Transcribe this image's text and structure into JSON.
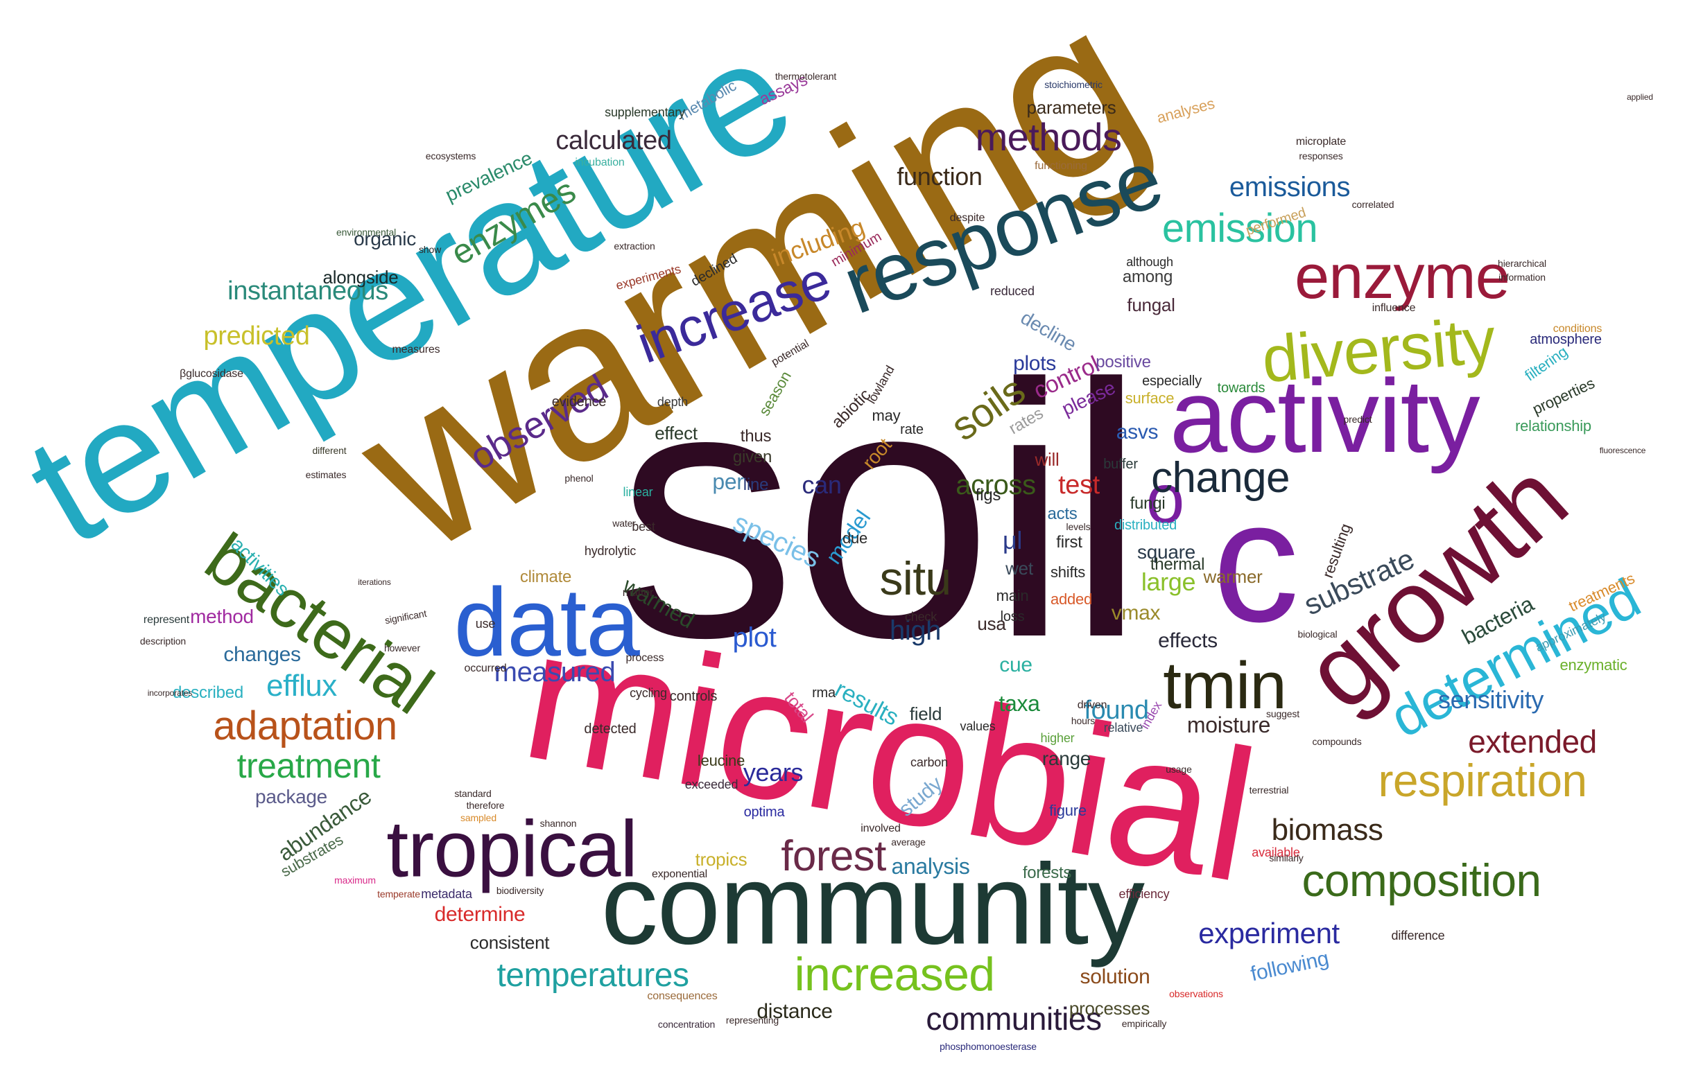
{
  "word_cloud": {
    "words": [
      {
        "text": "soil",
        "color": "#2e0a22"
      },
      {
        "text": "warming",
        "color": "#9a6a14"
      },
      {
        "text": "temperature",
        "color": "#22a9c2"
      },
      {
        "text": "microbial",
        "color": "#e0205f"
      },
      {
        "text": "community",
        "color": "#1d3a34"
      },
      {
        "text": "c",
        "color": "#7a1fa0"
      },
      {
        "text": "activity",
        "color": "#7a1fa0"
      },
      {
        "text": "growth",
        "color": "#6e1034"
      },
      {
        "text": "response",
        "color": "#1a4a5a"
      },
      {
        "text": "data",
        "color": "#2a5fd0"
      },
      {
        "text": "bacterial",
        "color": "#3d6a1a"
      },
      {
        "text": "tropical",
        "color": "#3a1040"
      },
      {
        "text": "diversity",
        "color": "#a3b81c"
      },
      {
        "text": "enzyme",
        "color": "#9a1a3a"
      },
      {
        "text": "increase",
        "color": "#3b2a9a"
      },
      {
        "text": "determined",
        "color": "#2ab6d6"
      },
      {
        "text": "respiration",
        "color": "#c9a62a"
      },
      {
        "text": "composition",
        "color": "#3a6a1a"
      },
      {
        "text": "tmin",
        "color": "#2b2a12"
      },
      {
        "text": "o",
        "color": "#7a1fa0"
      },
      {
        "text": "increased",
        "color": "#76c21e"
      },
      {
        "text": "forest",
        "color": "#6a2a48"
      },
      {
        "text": "adaptation",
        "color": "#b8521a"
      },
      {
        "text": "methods",
        "color": "#4a1a5a"
      },
      {
        "text": "emission",
        "color": "#2ac2a0"
      },
      {
        "text": "change",
        "color": "#1a2a3a"
      },
      {
        "text": "situ",
        "color": "#3a3a1a"
      },
      {
        "text": "soils",
        "color": "#6a6a1a"
      },
      {
        "text": "enzymes",
        "color": "#3a8a4a"
      },
      {
        "text": "observed",
        "color": "#5a2a8a"
      },
      {
        "text": "treatment",
        "color": "#28a848"
      },
      {
        "text": "temperatures",
        "color": "#1fa0a0"
      },
      {
        "text": "communities",
        "color": "#2a1a3a"
      },
      {
        "text": "experiment",
        "color": "#2a2aa0"
      },
      {
        "text": "extended",
        "color": "#7a1a2a"
      },
      {
        "text": "biomass",
        "color": "#3a2a1a"
      },
      {
        "text": "efflux",
        "color": "#2ab0c8"
      },
      {
        "text": "measured",
        "color": "#3a4ab0"
      },
      {
        "text": "calculated",
        "color": "#3a2a3a"
      },
      {
        "text": "emissions",
        "color": "#1a5a9a"
      },
      {
        "text": "instantaneous",
        "color": "#2a8a7a"
      },
      {
        "text": "predicted",
        "color": "#c8c02a"
      },
      {
        "text": "including",
        "color": "#c8882a"
      },
      {
        "text": "function",
        "color": "#3a2a1a"
      },
      {
        "text": "sensitivity",
        "color": "#2a6ab0"
      },
      {
        "text": "substrate",
        "color": "#3a4a5a"
      },
      {
        "text": "species",
        "color": "#7ac0e8"
      },
      {
        "text": "high",
        "color": "#1a3a6a"
      },
      {
        "text": "plot",
        "color": "#2a5ad0"
      },
      {
        "text": "results",
        "color": "#2ab0c0"
      },
      {
        "text": "analysis",
        "color": "#2a7aa0"
      },
      {
        "text": "years",
        "color": "#2a2a9a"
      },
      {
        "text": "found",
        "color": "#2a8ab0"
      },
      {
        "text": "moisture",
        "color": "#3a2a2a"
      },
      {
        "text": "bacteria",
        "color": "#2a4a3a"
      },
      {
        "text": "solution",
        "color": "#8a4a1a"
      },
      {
        "text": "distance",
        "color": "#2a2a1a"
      },
      {
        "text": "processes",
        "color": "#4a4a2a"
      },
      {
        "text": "following",
        "color": "#4a8ad0"
      },
      {
        "text": "determine",
        "color": "#d82a2a"
      },
      {
        "text": "abundance",
        "color": "#3a5a3a"
      },
      {
        "text": "consistent",
        "color": "#2a2a2a"
      },
      {
        "text": "changes",
        "color": "#2a6a9a"
      },
      {
        "text": "method",
        "color": "#a02aa0"
      },
      {
        "text": "package",
        "color": "#5a5a8a"
      },
      {
        "text": "activities",
        "color": "#2ab0b0"
      },
      {
        "text": "organic",
        "color": "#2a3a4a"
      },
      {
        "text": "alongside",
        "color": "#1a2a2a"
      },
      {
        "text": "prevalence",
        "color": "#2a8a6a"
      },
      {
        "text": "control",
        "color": "#9a2a8a"
      },
      {
        "text": "across",
        "color": "#3a5a1a"
      },
      {
        "text": "test",
        "color": "#c82a2a"
      },
      {
        "text": "can",
        "color": "#2a2a7a"
      },
      {
        "text": "per",
        "color": "#4a8ab0"
      },
      {
        "text": "warmed",
        "color": "#2a4a2a"
      },
      {
        "text": "model",
        "color": "#2a9ad0"
      },
      {
        "text": "large",
        "color": "#8ac02a"
      },
      {
        "text": "taxa",
        "color": "#1a8a3a"
      },
      {
        "text": "cue",
        "color": "#2ab0a0"
      },
      {
        "text": "effects",
        "color": "#2a2a3a"
      },
      {
        "text": "vmax",
        "color": "#9a8a2a"
      },
      {
        "text": "plots",
        "color": "#2a3a9a"
      },
      {
        "text": "asvs",
        "color": "#2a5ab0"
      },
      {
        "text": "study",
        "color": "#7aa8d0"
      },
      {
        "text": "range",
        "color": "#2a3a3a"
      },
      {
        "text": "total",
        "color": "#d84a8a"
      },
      {
        "text": "forests",
        "color": "#3a6a4a"
      },
      {
        "text": "field",
        "color": "#2a3a3a"
      },
      {
        "text": "climate",
        "color": "#b08a3a"
      },
      {
        "text": "square",
        "color": "#2a3a4a"
      },
      {
        "text": "warmer",
        "color": "#8a6a2a"
      },
      {
        "text": "root",
        "color": "#c88a2a"
      },
      {
        "text": "decline",
        "color": "#6a8ab0"
      },
      {
        "text": "fungal",
        "color": "#4a2a3a"
      },
      {
        "text": "among",
        "color": "#3a3a3a"
      },
      {
        "text": "thermal",
        "color": "#2a3a2a"
      },
      {
        "text": "will",
        "color": "#9a2a2a"
      },
      {
        "text": "rates",
        "color": "#9a9a9a"
      },
      {
        "text": "acts",
        "color": "#2a6a9a"
      },
      {
        "text": "first",
        "color": "#2a2a2a"
      },
      {
        "text": "shifts",
        "color": "#2a2a2a"
      },
      {
        "text": "added",
        "color": "#d85a2a"
      },
      {
        "text": "wet",
        "color": "#3a4a5a"
      },
      {
        "text": "main",
        "color": "#2a2a2a"
      },
      {
        "text": "loss",
        "color": "#2a2a2a"
      },
      {
        "text": "μl",
        "color": "#2a3a8a"
      },
      {
        "text": "effect",
        "color": "#2a3a2a"
      },
      {
        "text": "thus",
        "color": "#3a2a2a"
      },
      {
        "text": "given",
        "color": "#3a3a2a"
      },
      {
        "text": "line",
        "color": "#2a3a7a"
      },
      {
        "text": "please",
        "color": "#7a2a9a"
      },
      {
        "text": "positive",
        "color": "#6a4aa0"
      },
      {
        "text": "abiotic",
        "color": "#3a2a2a"
      },
      {
        "text": "season",
        "color": "#5a8a3a"
      },
      {
        "text": "substrates",
        "color": "#4a6a4a"
      },
      {
        "text": "described",
        "color": "#2ab0c0"
      },
      {
        "text": "treatments",
        "color": "#d88a2a"
      },
      {
        "text": "enzymatic",
        "color": "#6ab02a"
      },
      {
        "text": "relationship",
        "color": "#3a9a5a"
      },
      {
        "text": "properties",
        "color": "#2a3a2a"
      },
      {
        "text": "filtering",
        "color": "#2ab0c0"
      },
      {
        "text": "atmosphere",
        "color": "#2a2a7a"
      },
      {
        "text": "approximately",
        "color": "#3a9ab0"
      },
      {
        "text": "difference",
        "color": "#3a2a2a"
      },
      {
        "text": "efficiency",
        "color": "#6a2a3a"
      },
      {
        "text": "available",
        "color": "#d82a3a"
      },
      {
        "text": "parameters",
        "color": "#3a2a1a"
      },
      {
        "text": "analyses",
        "color": "#d8a05a"
      },
      {
        "text": "assays",
        "color": "#9a3a9a"
      },
      {
        "text": "metabolic",
        "color": "#5a8ab0"
      },
      {
        "text": "supplementary",
        "color": "#2a3a2a"
      },
      {
        "text": "incubation",
        "color": "#3ab0a0"
      },
      {
        "text": "functioning",
        "color": "#9a6a3a"
      },
      {
        "text": "environmental",
        "color": "#3a5a3a"
      },
      {
        "text": "especially",
        "color": "#2a2a2a"
      },
      {
        "text": "towards",
        "color": "#2a8a3a"
      },
      {
        "text": "surface",
        "color": "#c8b02a"
      },
      {
        "text": "fungi",
        "color": "#2a3a2a"
      },
      {
        "text": "buffer",
        "color": "#2a3a3a"
      },
      {
        "text": "index",
        "color": "#9a4ab0"
      },
      {
        "text": "higher",
        "color": "#5aa03a"
      },
      {
        "text": "figure",
        "color": "#2a3a9a"
      },
      {
        "text": "carbon",
        "color": "#3a2a2a"
      },
      {
        "text": "leucine",
        "color": "#3a3a1a"
      },
      {
        "text": "controls",
        "color": "#3a2a2a"
      },
      {
        "text": "cycling",
        "color": "#3a2a2a"
      },
      {
        "text": "optima",
        "color": "#2a2aa0"
      },
      {
        "text": "tropics",
        "color": "#c8b02a"
      },
      {
        "text": "relative",
        "color": "#3a4a5a"
      },
      {
        "text": "values",
        "color": "#2a2a2a"
      },
      {
        "text": "exceeded",
        "color": "#3a2a3a"
      },
      {
        "text": "reduced",
        "color": "#3a2a3a"
      },
      {
        "text": "although",
        "color": "#2a2a2a"
      },
      {
        "text": "declined",
        "color": "#2a2a2a"
      },
      {
        "text": "minimum",
        "color": "#9a2a5a"
      },
      {
        "text": "lowland",
        "color": "#3a2a2a"
      },
      {
        "text": "evidence",
        "color": "#3a2a2a"
      },
      {
        "text": "depth",
        "color": "#3a3a3a"
      },
      {
        "text": "measures",
        "color": "#3a2a2a"
      },
      {
        "text": "βglucosidase",
        "color": "#3a2a2a"
      },
      {
        "text": "represent",
        "color": "#2a3a3a"
      },
      {
        "text": "exponential",
        "color": "#3a2a2a"
      },
      {
        "text": "metadata",
        "color": "#3a2a6a"
      },
      {
        "text": "maximum",
        "color": "#d82a8a"
      },
      {
        "text": "temperate",
        "color": "#9a3a2a"
      },
      {
        "text": "biodiversity",
        "color": "#3a2a2a"
      },
      {
        "text": "consequences",
        "color": "#9a6a3a"
      },
      {
        "text": "concentration",
        "color": "#3a2a3a"
      },
      {
        "text": "representing",
        "color": "#3a2a2a"
      },
      {
        "text": "phosphomonoesterase",
        "color": "#2a2a7a"
      },
      {
        "text": "empirically",
        "color": "#3a2a2a"
      },
      {
        "text": "observations",
        "color": "#d82a2a"
      },
      {
        "text": "correlated",
        "color": "#3a2a2a"
      },
      {
        "text": "stoichiometric",
        "color": "#2a3a6a"
      },
      {
        "text": "thermotolerant",
        "color": "#3a2a2a"
      },
      {
        "text": "microplate",
        "color": "#3a2a2a"
      },
      {
        "text": "responses",
        "color": "#3a2a2a"
      },
      {
        "text": "performed",
        "color": "#c8a05a"
      },
      {
        "text": "influence",
        "color": "#3a2a2a"
      },
      {
        "text": "information",
        "color": "#3a2a2a"
      },
      {
        "text": "hierarchical",
        "color": "#3a2a2a"
      },
      {
        "text": "conditions",
        "color": "#c8882a"
      },
      {
        "text": "ecosystems",
        "color": "#3a2a2a"
      },
      {
        "text": "extraction",
        "color": "#3a2a2a"
      },
      {
        "text": "experiments",
        "color": "#9a3a2a"
      },
      {
        "text": "different",
        "color": "#3a3a2a"
      },
      {
        "text": "estimates",
        "color": "#3a2a2a"
      },
      {
        "text": "significant",
        "color": "#3a2a2a"
      },
      {
        "text": "however",
        "color": "#3a2a2a"
      },
      {
        "text": "description",
        "color": "#3a2a2a"
      },
      {
        "text": "incorporates",
        "color": "#3a2a2a"
      },
      {
        "text": "standard",
        "color": "#3a2a2a"
      },
      {
        "text": "therefore",
        "color": "#3a2a2a"
      },
      {
        "text": "sampled",
        "color": "#d88a2a"
      },
      {
        "text": "shannon",
        "color": "#3a2a2a"
      },
      {
        "text": "involved",
        "color": "#3a2a2a"
      },
      {
        "text": "average",
        "color": "#3a2a2a"
      },
      {
        "text": "usage",
        "color": "#3a2a2a"
      },
      {
        "text": "terrestrial",
        "color": "#3a2a2a"
      },
      {
        "text": "similarly",
        "color": "#3a2a2a"
      },
      {
        "text": "compounds",
        "color": "#3a2a2a"
      },
      {
        "text": "resulting",
        "color": "#3a2a2a"
      },
      {
        "text": "distributed",
        "color": "#2ab0c0"
      },
      {
        "text": "suggest",
        "color": "#3a2a2a"
      },
      {
        "text": "predict",
        "color": "#3a2a2a"
      },
      {
        "text": "despite",
        "color": "#3a2a2a"
      },
      {
        "text": "hydrolytic",
        "color": "#3a2a2a"
      },
      {
        "text": "phenol",
        "color": "#3a2a2a"
      },
      {
        "text": "detected",
        "color": "#3a2a2a"
      },
      {
        "text": "linear",
        "color": "#2ab0a0"
      },
      {
        "text": "best",
        "color": "#3a2a2a"
      },
      {
        "text": "use",
        "color": "#3a2a2a"
      },
      {
        "text": "matter",
        "color": "#3a2a2a"
      },
      {
        "text": "process",
        "color": "#3a2a2a"
      },
      {
        "text": "occurred",
        "color": "#3a2a2a"
      },
      {
        "text": "potential",
        "color": "#3a2a2a"
      },
      {
        "text": "water",
        "color": "#3a2a2a"
      },
      {
        "text": "levels",
        "color": "#3a2a2a"
      },
      {
        "text": "driven",
        "color": "#3a2a2a"
      },
      {
        "text": "hours",
        "color": "#3a2a2a"
      },
      {
        "text": "check",
        "color": "#3a2a2a"
      },
      {
        "text": "usa",
        "color": "#3a2a2a"
      },
      {
        "text": "rma",
        "color": "#2a2a2a"
      },
      {
        "text": "due",
        "color": "#2a2a2a"
      },
      {
        "text": "figs",
        "color": "#2a2a2a"
      },
      {
        "text": "may",
        "color": "#2a2a2a"
      },
      {
        "text": "rate",
        "color": "#2a2a2a"
      },
      {
        "text": "show",
        "color": "#2a2a2a"
      },
      {
        "text": "applied",
        "color": "#3a2a2a"
      },
      {
        "text": "fluorescence",
        "color": "#3a2a2a"
      },
      {
        "text": "iterations",
        "color": "#3a2a2a"
      },
      {
        "text": "biological",
        "color": "#3a2a2a"
      },
      {
        "text": "slope",
        "color": "#3a2a2a"
      }
    ]
  }
}
